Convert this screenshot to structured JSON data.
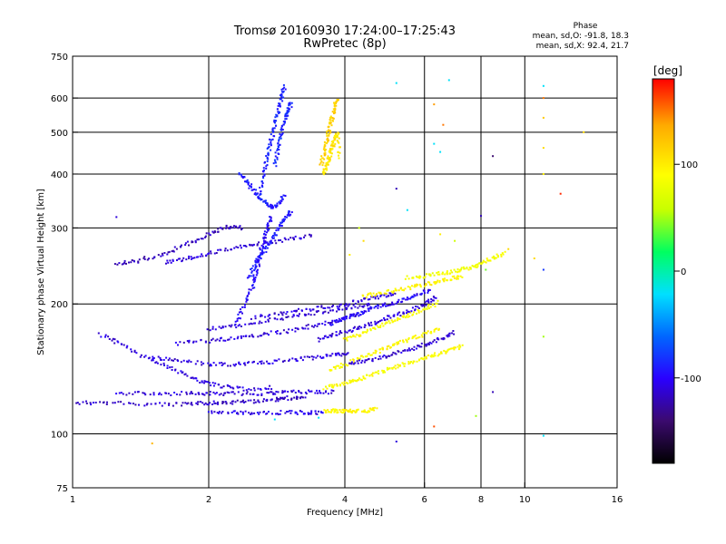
{
  "chart_data": {
    "type": "scatter",
    "title": "Tromsø 20160930 17:24:00–17:25:43",
    "subtitle": "RwPretec (8p)",
    "xlabel": "Frequency [MHz]",
    "ylabel": "Stationary phase Virtual Height [km]",
    "x_scale": "log",
    "y_scale": "log",
    "xlim": [
      1,
      16
    ],
    "ylim": [
      75,
      750
    ],
    "x_ticks": [
      1,
      2,
      4,
      6,
      8,
      10,
      16
    ],
    "y_ticks": [
      75,
      100,
      200,
      300,
      400,
      500,
      600,
      750
    ],
    "grid_x": [
      2,
      4,
      6,
      8,
      10
    ],
    "grid_y": [
      100,
      200,
      300,
      400,
      500,
      600
    ],
    "grid": true,
    "phase_info": {
      "heading": "Phase",
      "line_o": "mean, sd,O: -91.8, 18.3",
      "line_x": "mean, sd,X:  92.4, 21.7"
    },
    "colorbar": {
      "label": "[deg]",
      "range": [
        -180,
        180
      ],
      "ticks": [
        -100,
        0,
        100
      ],
      "colors": [
        "#000000",
        "#3b0a6e",
        "#2a00ff",
        "#0066ff",
        "#00e0ff",
        "#00ff60",
        "#c8ff00",
        "#ffff00",
        "#ffaa00",
        "#ff0000"
      ]
    },
    "traces": [
      {
        "name": "",
        "phase": -115,
        "points": [
          [
            1.02,
            118
          ],
          [
            1.2,
            118
          ],
          [
            1.5,
            117
          ],
          [
            1.8,
            117
          ],
          [
            2.0,
            118
          ],
          [
            2.2,
            118
          ],
          [
            2.5,
            119
          ],
          [
            2.8,
            120
          ],
          [
            3.0,
            121
          ],
          [
            3.3,
            121
          ]
        ]
      },
      {
        "name": "",
        "phase": -110,
        "points": [
          [
            1.25,
            124
          ],
          [
            1.5,
            124
          ],
          [
            1.8,
            124
          ],
          [
            2.0,
            124
          ],
          [
            2.3,
            124
          ],
          [
            2.7,
            124
          ],
          [
            3.0,
            125
          ],
          [
            3.4,
            125
          ],
          [
            3.8,
            125
          ]
        ]
      },
      {
        "name": "",
        "phase": -105,
        "points": [
          [
            2.0,
            112
          ],
          [
            2.3,
            112
          ],
          [
            2.6,
            112
          ],
          [
            3.0,
            112
          ],
          [
            3.3,
            112
          ],
          [
            3.6,
            112
          ]
        ]
      },
      {
        "name": "",
        "phase": 95,
        "points": [
          [
            3.6,
            113
          ],
          [
            3.8,
            113
          ],
          [
            4.0,
            113
          ],
          [
            4.2,
            113
          ],
          [
            4.5,
            113
          ],
          [
            4.7,
            114
          ]
        ]
      },
      {
        "name": "",
        "phase": -108,
        "points": [
          [
            1.15,
            170
          ],
          [
            1.3,
            160
          ],
          [
            1.5,
            148
          ],
          [
            1.7,
            140
          ],
          [
            1.9,
            133
          ],
          [
            2.1,
            129
          ],
          [
            2.4,
            127
          ],
          [
            2.8,
            128
          ]
        ]
      },
      {
        "name": "",
        "phase": -110,
        "points": [
          [
            1.5,
            150
          ],
          [
            1.7,
            148
          ],
          [
            2.0,
            145
          ],
          [
            2.3,
            145
          ],
          [
            2.6,
            146
          ],
          [
            3.0,
            148
          ],
          [
            3.4,
            150
          ],
          [
            3.8,
            152
          ],
          [
            4.1,
            154
          ]
        ]
      },
      {
        "name": "",
        "phase": -110,
        "points": [
          [
            1.7,
            162
          ],
          [
            2.0,
            164
          ],
          [
            2.3,
            167
          ],
          [
            2.6,
            170
          ],
          [
            3.0,
            173
          ],
          [
            3.4,
            178
          ],
          [
            3.9,
            184
          ],
          [
            4.3,
            190
          ]
        ]
      },
      {
        "name": "",
        "phase": -112,
        "points": [
          [
            2.0,
            175
          ],
          [
            2.3,
            178
          ],
          [
            2.7,
            183
          ],
          [
            3.1,
            188
          ],
          [
            3.6,
            192
          ],
          [
            4.1,
            196
          ],
          [
            4.6,
            200
          ]
        ]
      },
      {
        "name": "",
        "phase": -110,
        "points": [
          [
            2.5,
            186
          ],
          [
            2.9,
            190
          ],
          [
            3.3,
            194
          ],
          [
            3.8,
            198
          ],
          [
            4.3,
            203
          ],
          [
            4.8,
            208
          ],
          [
            5.2,
            212
          ]
        ]
      },
      {
        "name": "",
        "phase": -112,
        "points": [
          [
            1.6,
            250
          ],
          [
            1.8,
            255
          ],
          [
            2.0,
            262
          ],
          [
            2.3,
            270
          ],
          [
            2.6,
            276
          ],
          [
            3.0,
            282
          ],
          [
            3.4,
            288
          ]
        ]
      },
      {
        "name": "",
        "phase": -118,
        "points": [
          [
            1.25,
            248
          ],
          [
            1.4,
            252
          ],
          [
            1.6,
            262
          ],
          [
            1.8,
            275
          ],
          [
            2.0,
            290
          ],
          [
            2.2,
            302
          ],
          [
            2.4,
            300
          ]
        ]
      },
      {
        "name": "",
        "phase": -100,
        "points": [
          [
            2.3,
            180
          ],
          [
            2.4,
            200
          ],
          [
            2.5,
            220
          ],
          [
            2.55,
            240
          ],
          [
            2.6,
            260
          ],
          [
            2.65,
            280
          ],
          [
            2.7,
            300
          ],
          [
            2.75,
            320
          ]
        ]
      },
      {
        "name": "",
        "phase": -92,
        "points": [
          [
            2.45,
            230
          ],
          [
            2.55,
            250
          ],
          [
            2.65,
            265
          ],
          [
            2.75,
            280
          ],
          [
            2.85,
            300
          ],
          [
            2.95,
            315
          ],
          [
            3.05,
            330
          ]
        ]
      },
      {
        "name": "",
        "phase": -90,
        "points": [
          [
            2.35,
            400
          ],
          [
            2.45,
            380
          ],
          [
            2.55,
            360
          ],
          [
            2.65,
            345
          ],
          [
            2.75,
            335
          ],
          [
            2.85,
            340
          ],
          [
            2.95,
            360
          ]
        ]
      },
      {
        "name": "",
        "phase": -88,
        "points": [
          [
            2.6,
            360
          ],
          [
            2.65,
            400
          ],
          [
            2.7,
            440
          ],
          [
            2.75,
            480
          ],
          [
            2.8,
            520
          ],
          [
            2.85,
            560
          ],
          [
            2.9,
            600
          ],
          [
            2.95,
            640
          ]
        ]
      },
      {
        "name": "",
        "phase": -85,
        "points": [
          [
            2.8,
            420
          ],
          [
            2.85,
            460
          ],
          [
            2.9,
            500
          ],
          [
            2.95,
            540
          ],
          [
            3.0,
            560
          ],
          [
            3.05,
            590
          ]
        ]
      },
      {
        "name": "",
        "phase": 115,
        "points": [
          [
            3.55,
            420
          ],
          [
            3.6,
            450
          ],
          [
            3.65,
            480
          ],
          [
            3.7,
            510
          ],
          [
            3.75,
            540
          ],
          [
            3.8,
            570
          ],
          [
            3.85,
            600
          ]
        ]
      },
      {
        "name": "",
        "phase": 105,
        "points": [
          [
            3.6,
            400
          ],
          [
            3.65,
            420
          ],
          [
            3.7,
            440
          ],
          [
            3.75,
            460
          ],
          [
            3.8,
            480
          ],
          [
            3.85,
            500
          ],
          [
            3.9,
            430
          ]
        ]
      },
      {
        "name": "",
        "phase": 90,
        "points": [
          [
            3.6,
            128
          ],
          [
            3.9,
            130
          ],
          [
            4.2,
            133
          ],
          [
            4.5,
            136
          ],
          [
            4.9,
            140
          ],
          [
            5.3,
            144
          ],
          [
            5.8,
            148
          ],
          [
            6.3,
            152
          ],
          [
            6.8,
            156
          ],
          [
            7.3,
            160
          ]
        ]
      },
      {
        "name": "",
        "phase": 92,
        "points": [
          [
            3.7,
            140
          ],
          [
            4.0,
            145
          ],
          [
            4.3,
            150
          ],
          [
            4.7,
            155
          ],
          [
            5.1,
            160
          ],
          [
            5.5,
            165
          ],
          [
            6.0,
            170
          ],
          [
            6.5,
            176
          ]
        ]
      },
      {
        "name": "",
        "phase": 88,
        "points": [
          [
            4.0,
            165
          ],
          [
            4.3,
            170
          ],
          [
            4.7,
            176
          ],
          [
            5.1,
            182
          ],
          [
            5.5,
            188
          ],
          [
            6.0,
            195
          ],
          [
            6.5,
            202
          ]
        ]
      },
      {
        "name": "",
        "phase": 95,
        "points": [
          [
            4.4,
            208
          ],
          [
            4.8,
            212
          ],
          [
            5.3,
            216
          ],
          [
            5.8,
            220
          ],
          [
            6.3,
            224
          ],
          [
            6.8,
            228
          ],
          [
            7.3,
            232
          ]
        ]
      },
      {
        "name": "",
        "phase": 85,
        "points": [
          [
            5.5,
            230
          ],
          [
            6.0,
            232
          ],
          [
            6.5,
            235
          ],
          [
            7.0,
            238
          ],
          [
            7.5,
            242
          ],
          [
            8.0,
            248
          ],
          [
            8.5,
            255
          ],
          [
            9.0,
            262
          ]
        ]
      },
      {
        "name": "",
        "phase": -100,
        "points": [
          [
            3.7,
            180
          ],
          [
            4.0,
            185
          ],
          [
            4.3,
            190
          ],
          [
            4.6,
            196
          ],
          [
            5.0,
            200
          ],
          [
            5.4,
            205
          ],
          [
            5.8,
            210
          ],
          [
            6.2,
            216
          ]
        ]
      },
      {
        "name": "",
        "phase": -110,
        "points": [
          [
            3.5,
            165
          ],
          [
            3.8,
            170
          ],
          [
            4.2,
            175
          ],
          [
            4.6,
            180
          ],
          [
            5.0,
            186
          ],
          [
            5.5,
            192
          ],
          [
            6.0,
            200
          ],
          [
            6.4,
            208
          ]
        ]
      },
      {
        "name": "",
        "phase": -112,
        "points": [
          [
            4.1,
            145
          ],
          [
            4.5,
            148
          ],
          [
            5.0,
            152
          ],
          [
            5.5,
            156
          ],
          [
            6.0,
            161
          ],
          [
            6.5,
            166
          ],
          [
            7.0,
            172
          ]
        ]
      }
    ],
    "scatter_points": [
      {
        "x": 5.2,
        "y": 650,
        "phase": -20
      },
      {
        "x": 6.8,
        "y": 660,
        "phase": -20
      },
      {
        "x": 11.0,
        "y": 640,
        "phase": -20
      },
      {
        "x": 6.3,
        "y": 580,
        "phase": 140
      },
      {
        "x": 11.0,
        "y": 600,
        "phase": 150
      },
      {
        "x": 11.0,
        "y": 540,
        "phase": 120
      },
      {
        "x": 6.6,
        "y": 520,
        "phase": 150
      },
      {
        "x": 6.3,
        "y": 470,
        "phase": -20
      },
      {
        "x": 6.5,
        "y": 450,
        "phase": -20
      },
      {
        "x": 8.5,
        "y": 440,
        "phase": -140
      },
      {
        "x": 11.0,
        "y": 460,
        "phase": 110
      },
      {
        "x": 11.0,
        "y": 400,
        "phase": 100
      },
      {
        "x": 12.0,
        "y": 360,
        "phase": 170
      },
      {
        "x": 13.5,
        "y": 500,
        "phase": 110
      },
      {
        "x": 5.2,
        "y": 370,
        "phase": -120
      },
      {
        "x": 5.5,
        "y": 330,
        "phase": -20
      },
      {
        "x": 8.0,
        "y": 320,
        "phase": -120
      },
      {
        "x": 1.25,
        "y": 318,
        "phase": -110
      },
      {
        "x": 6.5,
        "y": 290,
        "phase": 100
      },
      {
        "x": 7.0,
        "y": 280,
        "phase": 60
      },
      {
        "x": 9.2,
        "y": 268,
        "phase": 110
      },
      {
        "x": 10.5,
        "y": 255,
        "phase": 110
      },
      {
        "x": 11.0,
        "y": 240,
        "phase": -80
      },
      {
        "x": 8.2,
        "y": 240,
        "phase": 40
      },
      {
        "x": 11.0,
        "y": 168,
        "phase": 50
      },
      {
        "x": 8.5,
        "y": 125,
        "phase": -120
      },
      {
        "x": 6.3,
        "y": 104,
        "phase": 160
      },
      {
        "x": 7.8,
        "y": 110,
        "phase": 50
      },
      {
        "x": 11.0,
        "y": 99,
        "phase": -20
      },
      {
        "x": 5.2,
        "y": 96,
        "phase": -110
      },
      {
        "x": 1.5,
        "y": 95,
        "phase": 130
      },
      {
        "x": 2.8,
        "y": 108,
        "phase": -20
      },
      {
        "x": 3.5,
        "y": 109,
        "phase": -20
      },
      {
        "x": 4.3,
        "y": 300,
        "phase": 60
      },
      {
        "x": 4.1,
        "y": 260,
        "phase": 100
      },
      {
        "x": 4.4,
        "y": 280,
        "phase": 110
      }
    ]
  }
}
